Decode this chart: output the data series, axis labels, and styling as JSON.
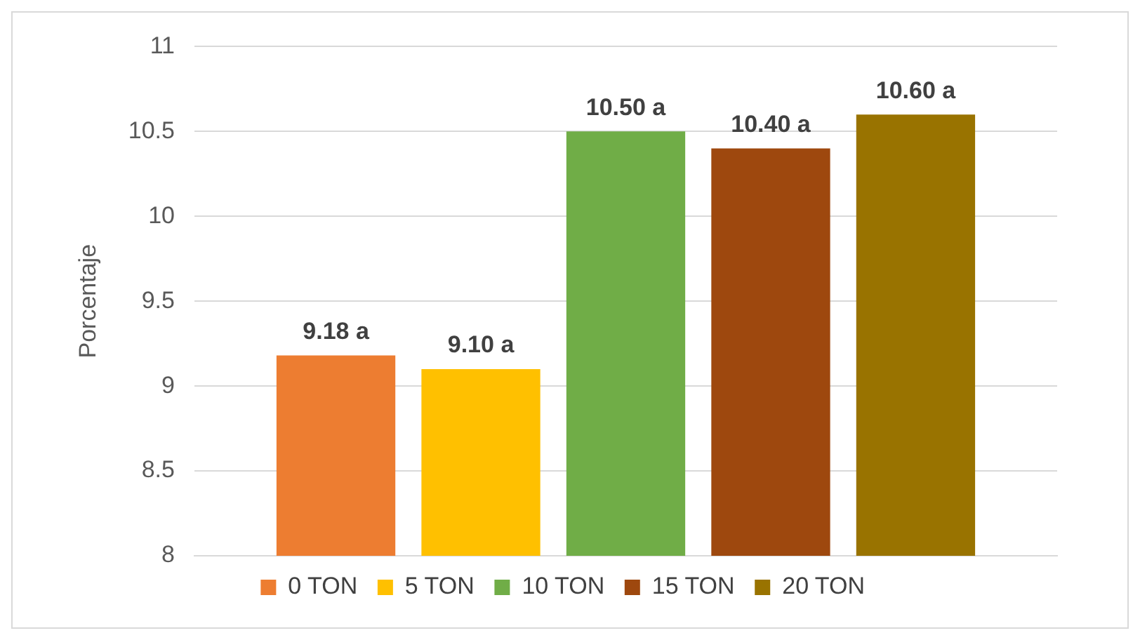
{
  "chart_data": {
    "type": "bar",
    "ylabel": "Porcentaje",
    "categories": [
      null
    ],
    "series": [
      {
        "name": "0 TON",
        "color": "#ed7d31",
        "values": [
          9.18
        ],
        "value_labels": [
          "9.18 a"
        ]
      },
      {
        "name": "5 TON",
        "color": "#ffc000",
        "values": [
          9.1
        ],
        "value_labels": [
          "9.10 a"
        ]
      },
      {
        "name": "10 TON",
        "color": "#70ad47",
        "values": [
          10.5
        ],
        "value_labels": [
          "10.50 a"
        ]
      },
      {
        "name": "15 TON",
        "color": "#9e480e",
        "values": [
          10.4
        ],
        "value_labels": [
          "10.40 a"
        ]
      },
      {
        "name": "20 TON",
        "color": "#997300",
        "values": [
          10.6
        ],
        "value_labels": [
          "10.60 a"
        ]
      }
    ],
    "ylim": [
      8,
      11
    ],
    "yticks": [
      8,
      8.5,
      9,
      9.5,
      10,
      10.5,
      11
    ],
    "grid": "y",
    "legend": "bottom",
    "tick_labels": "y"
  }
}
